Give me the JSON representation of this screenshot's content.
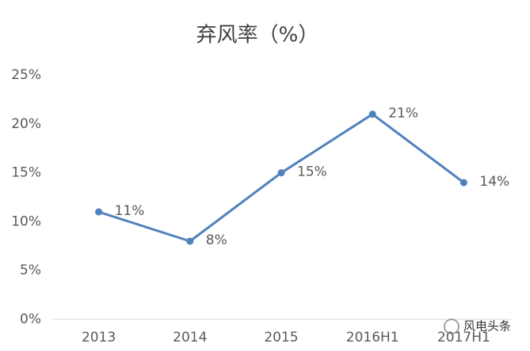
{
  "chart_data": {
    "type": "line",
    "title": "弃风率（%）",
    "categories": [
      "2013",
      "2014",
      "2015",
      "2016H1",
      "2017H1"
    ],
    "values": [
      11,
      8,
      15,
      21,
      14
    ],
    "value_labels": [
      "11%",
      "8%",
      "15%",
      "21%",
      "14%"
    ],
    "color": "#4f81bd",
    "ylim": [
      0,
      25
    ],
    "yticks": [
      {
        "value": 0,
        "label": "0%"
      },
      {
        "value": 5,
        "label": "5%"
      },
      {
        "value": 10,
        "label": "10%"
      },
      {
        "value": 15,
        "label": "15%"
      },
      {
        "value": 20,
        "label": "20%"
      },
      {
        "value": 25,
        "label": "25%"
      }
    ],
    "grid": false
  },
  "watermark": "风电头条"
}
